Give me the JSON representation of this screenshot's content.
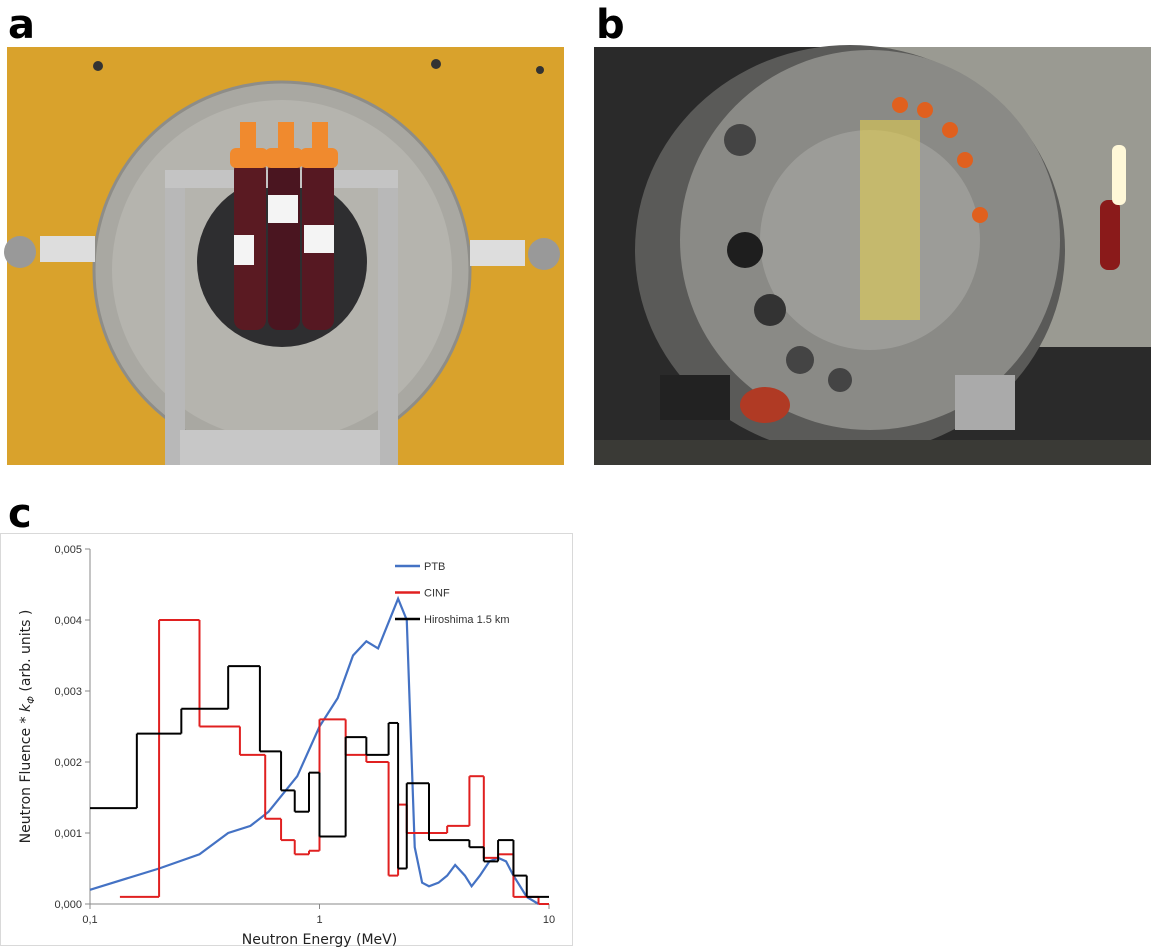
{
  "panels": {
    "a": "a",
    "b": "b",
    "c": "c"
  },
  "chart_data": {
    "type": "line",
    "xlabel": "Neutron Energy (MeV)",
    "ylabel": [
      "Neutron Fluence * ",
      "k",
      "Φ",
      "  (arb. units )"
    ],
    "xscale": "log",
    "xlim": [
      0.1,
      10
    ],
    "xticks": [
      {
        "value": 0.1,
        "label": "0,1"
      },
      1,
      10
    ],
    "ylim": [
      0,
      0.005
    ],
    "yticks": [
      {
        "value": 0,
        "label": "0,000"
      },
      {
        "value": 0.001,
        "label": "0,001"
      },
      {
        "value": 0.002,
        "label": "0,002"
      },
      {
        "value": 0.003,
        "label": "0,003"
      },
      {
        "value": 0.004,
        "label": "0,004"
      },
      {
        "value": 0.005,
        "label": "0,005"
      }
    ],
    "legend": "upper right",
    "series": [
      {
        "name": "PTB",
        "color": "#4472c4",
        "x": [
          0.1,
          0.2,
          0.3,
          0.4,
          0.5,
          0.6,
          0.8,
          1.0,
          1.2,
          1.4,
          1.6,
          1.8,
          2.2,
          2.4,
          2.6,
          2.8,
          3.0,
          3.3,
          3.6,
          3.9,
          4.3,
          4.6,
          5.0,
          5.5,
          6.0,
          6.5,
          7.0,
          8.0,
          9.0
        ],
        "values": [
          0.0002,
          0.0005,
          0.0007,
          0.001,
          0.0011,
          0.0013,
          0.0018,
          0.0025,
          0.0029,
          0.0035,
          0.0037,
          0.0036,
          0.0043,
          0.004,
          0.0008,
          0.0003,
          0.00025,
          0.0003,
          0.0004,
          0.00055,
          0.0004,
          0.00025,
          0.0004,
          0.0006,
          0.00065,
          0.0006,
          0.0004,
          0.0001,
          0.0
        ]
      },
      {
        "name": "CINF",
        "color": "#e02020",
        "bins": [
          0.135,
          0.2,
          0.3,
          0.45,
          0.58,
          0.68,
          0.78,
          0.9,
          1.0,
          1.3,
          1.6,
          2.0,
          2.2,
          2.4,
          3.0,
          3.6,
          4.5,
          5.2,
          6.0,
          7.0,
          8.0,
          9.0,
          10
        ],
        "values": [
          0.0001,
          0.004,
          0.0025,
          0.0021,
          0.0012,
          0.0009,
          0.0007,
          0.00075,
          0.0026,
          0.0021,
          0.002,
          0.0004,
          0.0014,
          0.001,
          0.001,
          0.0011,
          0.0018,
          0.00065,
          0.0007,
          0.0001,
          0.0001,
          0.0
        ]
      },
      {
        "name": "Hiroshima 1.5 km",
        "color": "#000000",
        "bins": [
          0.1,
          0.16,
          0.25,
          0.4,
          0.55,
          0.68,
          0.78,
          0.9,
          1.0,
          1.3,
          1.6,
          2.0,
          2.2,
          2.4,
          3.0,
          4.5,
          5.2,
          6.0,
          7.0,
          8.0,
          10
        ],
        "values": [
          0.00135,
          0.0024,
          0.00275,
          0.00335,
          0.00215,
          0.0016,
          0.0013,
          0.00185,
          0.00095,
          0.00235,
          0.0021,
          0.00255,
          0.0005,
          0.0017,
          0.0009,
          0.0008,
          0.0006,
          0.0009,
          0.0004,
          0.0001
        ]
      }
    ]
  }
}
